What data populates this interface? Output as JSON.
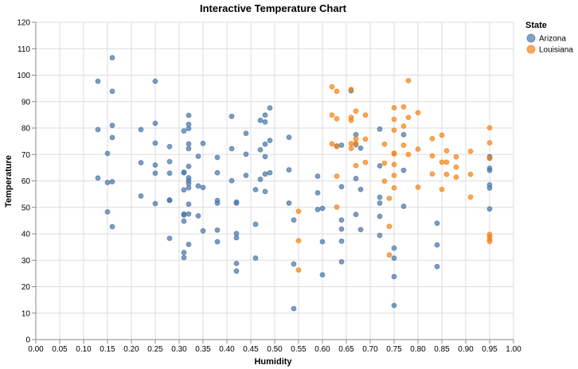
{
  "chart_data": {
    "type": "scatter",
    "title": "Interactive Temperature Chart",
    "xlabel": "Humidity",
    "ylabel": "Temperature",
    "xlim": [
      0,
      1
    ],
    "ylim": [
      0,
      120
    ],
    "x_tick_labels": [
      "0.00",
      "0.05",
      "0.10",
      "0.15",
      "0.20",
      "0.25",
      "0.30",
      "0.35",
      "0.40",
      "0.45",
      "0.50",
      "0.55",
      "0.60",
      "0.65",
      "0.70",
      "0.75",
      "0.80",
      "0.85",
      "0.90",
      "0.95",
      "1.00"
    ],
    "y_tick_labels": [
      "0",
      "10",
      "20",
      "30",
      "40",
      "50",
      "60",
      "70",
      "80",
      "90",
      "100",
      "110",
      "120"
    ],
    "grid": true,
    "legend": {
      "title": "State",
      "placement": "top-right"
    },
    "series": [
      {
        "name": "Arizona",
        "color": "#4c78a8",
        "points": [
          [
            0.13,
            97.7
          ],
          [
            0.13,
            79.4
          ],
          [
            0.13,
            61.1
          ],
          [
            0.15,
            70.4
          ],
          [
            0.15,
            59.4
          ],
          [
            0.15,
            48.3
          ],
          [
            0.16,
            106.6
          ],
          [
            0.16,
            93.9
          ],
          [
            0.16,
            81.0
          ],
          [
            0.16,
            76.4
          ],
          [
            0.16,
            59.7
          ],
          [
            0.16,
            42.7
          ],
          [
            0.22,
            79.4
          ],
          [
            0.22,
            66.9
          ],
          [
            0.22,
            54.3
          ],
          [
            0.25,
            97.7
          ],
          [
            0.25,
            81.8
          ],
          [
            0.25,
            74.3
          ],
          [
            0.25,
            66.0
          ],
          [
            0.25,
            62.9
          ],
          [
            0.25,
            51.4
          ],
          [
            0.28,
            73.0
          ],
          [
            0.28,
            67.3
          ],
          [
            0.28,
            62.9
          ],
          [
            0.28,
            52.6
          ],
          [
            0.28,
            52.8
          ],
          [
            0.28,
            38.3
          ],
          [
            0.31,
            78.9
          ],
          [
            0.31,
            63.3
          ],
          [
            0.31,
            63.1
          ],
          [
            0.31,
            56.6
          ],
          [
            0.31,
            47.5
          ],
          [
            0.31,
            47.1
          ],
          [
            0.31,
            44.8
          ],
          [
            0.31,
            32.9
          ],
          [
            0.31,
            31.0
          ],
          [
            0.32,
            84.8
          ],
          [
            0.32,
            81.4
          ],
          [
            0.32,
            79.8
          ],
          [
            0.32,
            74.0
          ],
          [
            0.32,
            72.2
          ],
          [
            0.32,
            65.5
          ],
          [
            0.32,
            61.2
          ],
          [
            0.32,
            60.1
          ],
          [
            0.32,
            59.0
          ],
          [
            0.32,
            57.4
          ],
          [
            0.32,
            51.2
          ],
          [
            0.32,
            47.5
          ],
          [
            0.32,
            36.0
          ],
          [
            0.34,
            69.3
          ],
          [
            0.34,
            58.1
          ],
          [
            0.34,
            46.8
          ],
          [
            0.35,
            74.2
          ],
          [
            0.35,
            57.5
          ],
          [
            0.35,
            41.1
          ],
          [
            0.38,
            68.9
          ],
          [
            0.38,
            63.1
          ],
          [
            0.38,
            52.6
          ],
          [
            0.38,
            51.6
          ],
          [
            0.38,
            41.4
          ],
          [
            0.38,
            37.0
          ],
          [
            0.41,
            84.4
          ],
          [
            0.41,
            72.2
          ],
          [
            0.41,
            60.1
          ],
          [
            0.42,
            52.0
          ],
          [
            0.42,
            51.6
          ],
          [
            0.42,
            40.1
          ],
          [
            0.42,
            38.5
          ],
          [
            0.42,
            28.8
          ],
          [
            0.42,
            25.9
          ],
          [
            0.44,
            78.0
          ],
          [
            0.44,
            70.1
          ],
          [
            0.44,
            62.1
          ],
          [
            0.46,
            56.7
          ],
          [
            0.46,
            43.6
          ],
          [
            0.46,
            30.8
          ],
          [
            0.47,
            82.9
          ],
          [
            0.47,
            71.8
          ],
          [
            0.47,
            60.6
          ],
          [
            0.48,
            84.9
          ],
          [
            0.48,
            82.3
          ],
          [
            0.48,
            73.9
          ],
          [
            0.48,
            69.2
          ],
          [
            0.48,
            62.6
          ],
          [
            0.48,
            56.0
          ],
          [
            0.49,
            87.6
          ],
          [
            0.49,
            75.3
          ],
          [
            0.49,
            63.1
          ],
          [
            0.53,
            76.5
          ],
          [
            0.53,
            64.2
          ],
          [
            0.53,
            51.6
          ],
          [
            0.54,
            45.2
          ],
          [
            0.54,
            28.6
          ],
          [
            0.54,
            11.7
          ],
          [
            0.59,
            61.8
          ],
          [
            0.59,
            55.5
          ],
          [
            0.59,
            49.2
          ],
          [
            0.6,
            49.6
          ],
          [
            0.6,
            37.0
          ],
          [
            0.6,
            24.5
          ],
          [
            0.63,
            73.2
          ],
          [
            0.64,
            73.5
          ],
          [
            0.64,
            57.8
          ],
          [
            0.64,
            45.2
          ],
          [
            0.64,
            41.8
          ],
          [
            0.64,
            37.2
          ],
          [
            0.64,
            29.4
          ],
          [
            0.66,
            94.1
          ],
          [
            0.67,
            77.5
          ],
          [
            0.67,
            73.7
          ],
          [
            0.67,
            60.9
          ],
          [
            0.67,
            47.3
          ],
          [
            0.68,
            72.4
          ],
          [
            0.68,
            56.8
          ],
          [
            0.68,
            41.6
          ],
          [
            0.72,
            79.6
          ],
          [
            0.72,
            65.7
          ],
          [
            0.72,
            53.8
          ],
          [
            0.72,
            51.6
          ],
          [
            0.72,
            46.6
          ],
          [
            0.72,
            39.4
          ],
          [
            0.75,
            34.6
          ],
          [
            0.75,
            30.8
          ],
          [
            0.75,
            23.8
          ],
          [
            0.75,
            12.9
          ],
          [
            0.77,
            77.5
          ],
          [
            0.77,
            64.0
          ],
          [
            0.77,
            50.4
          ],
          [
            0.84,
            44.0
          ],
          [
            0.84,
            35.8
          ],
          [
            0.84,
            27.6
          ],
          [
            0.95,
            69.2
          ],
          [
            0.95,
            68.6
          ],
          [
            0.95,
            64.8
          ],
          [
            0.95,
            64.0
          ],
          [
            0.95,
            58.5
          ],
          [
            0.95,
            57.3
          ],
          [
            0.95,
            49.4
          ]
        ]
      },
      {
        "name": "Louisiana",
        "color": "#f58518",
        "points": [
          [
            0.55,
            48.5
          ],
          [
            0.55,
            37.4
          ],
          [
            0.55,
            26.3
          ],
          [
            0.62,
            95.6
          ],
          [
            0.62,
            84.9
          ],
          [
            0.62,
            74.0
          ],
          [
            0.63,
            93.9
          ],
          [
            0.63,
            83.5
          ],
          [
            0.63,
            73.0
          ],
          [
            0.63,
            61.8
          ],
          [
            0.63,
            50.1
          ],
          [
            0.66,
            94.6
          ],
          [
            0.66,
            84.0
          ],
          [
            0.66,
            82.9
          ],
          [
            0.66,
            74.1
          ],
          [
            0.66,
            72.3
          ],
          [
            0.67,
            86.4
          ],
          [
            0.67,
            75.9
          ],
          [
            0.67,
            74.2
          ],
          [
            0.67,
            65.8
          ],
          [
            0.69,
            84.9
          ],
          [
            0.69,
            75.8
          ],
          [
            0.69,
            67.0
          ],
          [
            0.73,
            73.9
          ],
          [
            0.73,
            66.7
          ],
          [
            0.73,
            59.9
          ],
          [
            0.74,
            53.4
          ],
          [
            0.74,
            42.8
          ],
          [
            0.74,
            32.0
          ],
          [
            0.75,
            87.7
          ],
          [
            0.75,
            83.3
          ],
          [
            0.75,
            79.2
          ],
          [
            0.75,
            70.2
          ],
          [
            0.75,
            70.5
          ],
          [
            0.75,
            66.2
          ],
          [
            0.75,
            62.1
          ],
          [
            0.75,
            57.4
          ],
          [
            0.77,
            88.0
          ],
          [
            0.77,
            80.7
          ],
          [
            0.77,
            73.5
          ],
          [
            0.78,
            97.9
          ],
          [
            0.78,
            84.0
          ],
          [
            0.78,
            70.0
          ],
          [
            0.8,
            85.8
          ],
          [
            0.8,
            72.0
          ],
          [
            0.8,
            57.6
          ],
          [
            0.83,
            76.0
          ],
          [
            0.83,
            69.5
          ],
          [
            0.83,
            62.6
          ],
          [
            0.85,
            77.3
          ],
          [
            0.85,
            67.1
          ],
          [
            0.85,
            56.8
          ],
          [
            0.86,
            71.4
          ],
          [
            0.86,
            67.1
          ],
          [
            0.86,
            62.5
          ],
          [
            0.88,
            69.1
          ],
          [
            0.88,
            65.2
          ],
          [
            0.88,
            61.4
          ],
          [
            0.91,
            71.2
          ],
          [
            0.91,
            62.5
          ],
          [
            0.91,
            53.9
          ],
          [
            0.95,
            80.1
          ],
          [
            0.95,
            74.4
          ],
          [
            0.95,
            68.6
          ],
          [
            0.95,
            39.8
          ],
          [
            0.95,
            38.9
          ],
          [
            0.95,
            37.9
          ],
          [
            0.95,
            37.1
          ]
        ]
      }
    ]
  }
}
